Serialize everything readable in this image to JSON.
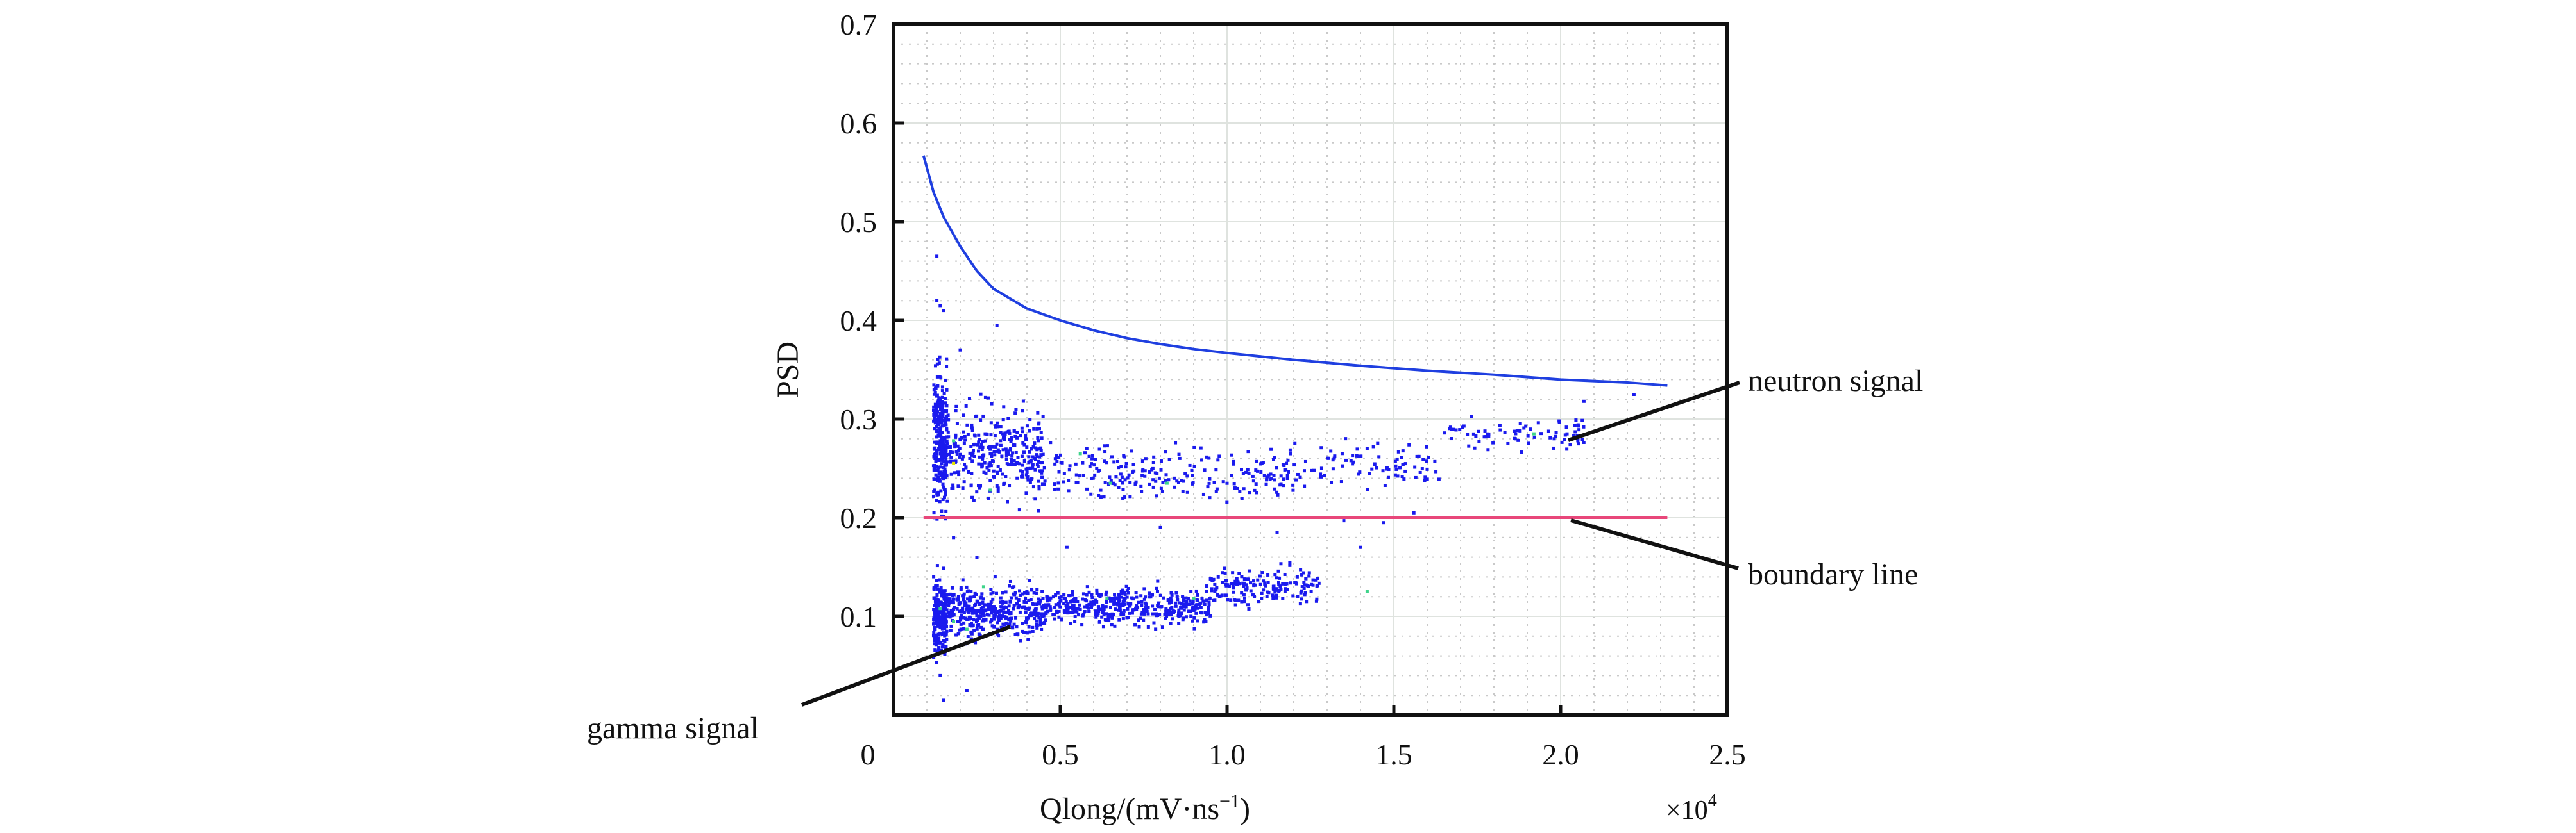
{
  "chart_data": {
    "type": "scatter",
    "title": "",
    "xlabel": "Qlong/(mV·ns",
    "xlabel_sup": "−1",
    "xlabel_close": ")",
    "x_multiplier": "×10",
    "x_multiplier_exp": "4",
    "ylabel": "PSD",
    "xlim": [
      0,
      2.5
    ],
    "ylim": [
      0,
      0.7
    ],
    "xticks": [
      0,
      0.5,
      1.0,
      1.5,
      2.0,
      2.5
    ],
    "xtick_labels": [
      "0",
      "0.5",
      "1.0",
      "1.5",
      "2.0",
      "2.5"
    ],
    "yticks": [
      0.1,
      0.2,
      0.3,
      0.4,
      0.5,
      0.6,
      0.7
    ],
    "ytick_labels": [
      "0.1",
      "0.2",
      "0.3",
      "0.4",
      "0.5",
      "0.6",
      "0.7"
    ],
    "grid": true,
    "minor_grid": {
      "x_step": 0.1,
      "y_step": 0.02
    },
    "series": [
      {
        "name": "upper curve",
        "kind": "line",
        "color": "#1f3fe0",
        "x": [
          0.09,
          0.12,
          0.15,
          0.2,
          0.25,
          0.3,
          0.4,
          0.5,
          0.6,
          0.7,
          0.8,
          0.9,
          1.0,
          1.2,
          1.4,
          1.6,
          1.8,
          2.0,
          2.2,
          2.32
        ],
        "y": [
          0.567,
          0.53,
          0.505,
          0.475,
          0.45,
          0.432,
          0.412,
          0.4,
          0.39,
          0.382,
          0.376,
          0.371,
          0.367,
          0.36,
          0.354,
          0.349,
          0.345,
          0.34,
          0.337,
          0.334
        ]
      },
      {
        "name": "boundary line",
        "kind": "line",
        "color": "#e8477a",
        "x": [
          0.09,
          2.32
        ],
        "y": [
          0.2,
          0.2
        ]
      },
      {
        "name": "neutron signal",
        "kind": "scatter-cluster",
        "color": "#1a1aee",
        "clusters": [
          {
            "x_range": [
              0.12,
              0.16
            ],
            "y_center": 0.28,
            "y_spread": 0.07,
            "count": 260
          },
          {
            "x_range": [
              0.16,
              0.45
            ],
            "y_center": 0.265,
            "y_spread": 0.045,
            "count": 330
          },
          {
            "x_range": [
              0.45,
              1.2
            ],
            "y_center": 0.245,
            "y_spread": 0.025,
            "count": 230
          },
          {
            "x_range": [
              1.2,
              1.65
            ],
            "y_center": 0.255,
            "y_spread": 0.022,
            "count": 90
          },
          {
            "x_range": [
              1.65,
              2.07
            ],
            "y_center": 0.285,
            "y_spread": 0.018,
            "count": 80
          }
        ],
        "extra_points": [
          [
            0.13,
            0.42
          ],
          [
            0.15,
            0.41
          ],
          [
            0.14,
            0.415
          ],
          [
            0.2,
            0.37
          ],
          [
            0.31,
            0.395
          ],
          [
            0.13,
            0.465
          ],
          [
            2.22,
            0.325
          ],
          [
            2.07,
            0.318
          ],
          [
            1.56,
            0.205
          ],
          [
            1.35,
            0.197
          ],
          [
            1.47,
            0.195
          ]
        ]
      },
      {
        "name": "gamma signal",
        "kind": "scatter-cluster",
        "color": "#1a1aee",
        "clusters": [
          {
            "x_range": [
              0.12,
              0.16
            ],
            "y_center": 0.1,
            "y_spread": 0.035,
            "count": 230
          },
          {
            "x_range": [
              0.16,
              0.45
            ],
            "y_center": 0.105,
            "y_spread": 0.025,
            "count": 380
          },
          {
            "x_range": [
              0.45,
              0.95
            ],
            "y_center": 0.11,
            "y_spread": 0.018,
            "count": 420
          },
          {
            "x_range": [
              0.95,
              1.28
            ],
            "y_center": 0.13,
            "y_spread": 0.017,
            "count": 170
          }
        ],
        "extra_points": [
          [
            0.15,
            0.015
          ],
          [
            0.22,
            0.025
          ],
          [
            0.14,
            0.04
          ],
          [
            0.18,
            0.18
          ],
          [
            0.52,
            0.17
          ],
          [
            1.4,
            0.17
          ],
          [
            1.15,
            0.185
          ],
          [
            0.8,
            0.19
          ],
          [
            0.25,
            0.16
          ]
        ]
      }
    ],
    "highlight_points": {
      "green": [
        [
          0.14,
          0.108
        ],
        [
          0.18,
          0.095
        ],
        [
          0.27,
          0.13
        ],
        [
          0.22,
          0.087
        ],
        [
          0.64,
          0.118
        ],
        [
          0.9,
          0.118
        ],
        [
          0.18,
          0.278
        ],
        [
          0.29,
          0.228
        ],
        [
          0.56,
          0.265
        ],
        [
          0.65,
          0.235
        ],
        [
          0.82,
          0.235
        ],
        [
          1.92,
          0.285
        ],
        [
          1.42,
          0.125
        ]
      ],
      "green_color": "#3ed48a",
      "yellow": [
        [
          0.18,
          0.255
        ]
      ],
      "yellow_color": "#e6e600"
    },
    "annotations": [
      {
        "text": "neutron signal",
        "target": [
          2.03,
          0.28
        ]
      },
      {
        "text": "boundary line",
        "target": [
          2.04,
          0.198
        ]
      },
      {
        "text": "gamma signal",
        "target": [
          0.35,
          0.09
        ]
      }
    ]
  }
}
